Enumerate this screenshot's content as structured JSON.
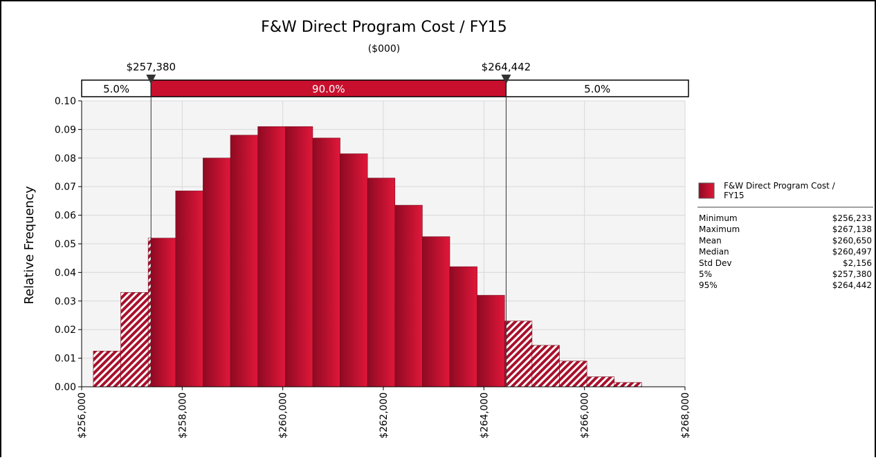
{
  "chart_data": {
    "type": "histogram",
    "title": "F&W Direct Program Cost / FY15",
    "subtitle": "($000)",
    "y_label": "Relative Frequency",
    "bins": [
      256233,
      256778.25,
      257323.5,
      257868.75,
      258414,
      258959.25,
      259504.5,
      260049.75,
      260595,
      261140.25,
      261685.5,
      262230.75,
      262776,
      263321.25,
      263866.5,
      264411.75,
      264957,
      265502.25,
      266047.5,
      266592.75,
      267138
    ],
    "values": [
      0.0125,
      0.033,
      0.052,
      0.0685,
      0.08,
      0.088,
      0.091,
      0.091,
      0.087,
      0.0815,
      0.073,
      0.0635,
      0.0525,
      0.042,
      0.032,
      0.023,
      0.0145,
      0.009,
      0.0035,
      0.0015
    ],
    "color": "#c8102e",
    "xlim": [
      256000,
      268000
    ],
    "xticks": [
      {
        "value": 256000,
        "label": "$256,000"
      },
      {
        "value": 258000,
        "label": "$258,000"
      },
      {
        "value": 260000,
        "label": "$260,000"
      },
      {
        "value": 262000,
        "label": "$262,000"
      },
      {
        "value": 264000,
        "label": "$264,000"
      },
      {
        "value": 266000,
        "label": "$266,000"
      },
      {
        "value": 268000,
        "label": "$268,000"
      }
    ],
    "ylim": [
      0,
      0.1
    ],
    "yticks": [
      {
        "value": 0,
        "label": "0.00"
      },
      {
        "value": 0.01,
        "label": "0.01"
      },
      {
        "value": 0.02,
        "label": "0.02"
      },
      {
        "value": 0.03,
        "label": "0.03"
      },
      {
        "value": 0.04,
        "label": "0.04"
      },
      {
        "value": 0.05,
        "label": "0.05"
      },
      {
        "value": 0.06,
        "label": "0.06"
      },
      {
        "value": 0.07,
        "label": "0.07"
      },
      {
        "value": 0.08,
        "label": "0.08"
      },
      {
        "value": 0.09,
        "label": "0.09"
      },
      {
        "value": 0.1,
        "label": "0.10"
      }
    ],
    "grid": true,
    "delimiters": [
      {
        "value": 257380,
        "label": "$257,380"
      },
      {
        "value": 264442,
        "label": "$264,442"
      }
    ],
    "regions": [
      {
        "value": 5,
        "label": "5.0%"
      },
      {
        "value": 90,
        "label": "90.0%"
      },
      {
        "value": 5,
        "label": "5.0%"
      }
    ],
    "legend": {
      "name": "F&W Direct Program Cost / FY15",
      "stats": [
        [
          "Minimum",
          "$256,233"
        ],
        [
          "Maximum",
          "$267,138"
        ],
        [
          "Mean",
          "$260,650"
        ],
        [
          "Median",
          "$260,497"
        ],
        [
          "Std Dev",
          "$2,156"
        ],
        [
          "5%",
          "$257,380"
        ],
        [
          "95%",
          "$264,442"
        ]
      ]
    }
  }
}
